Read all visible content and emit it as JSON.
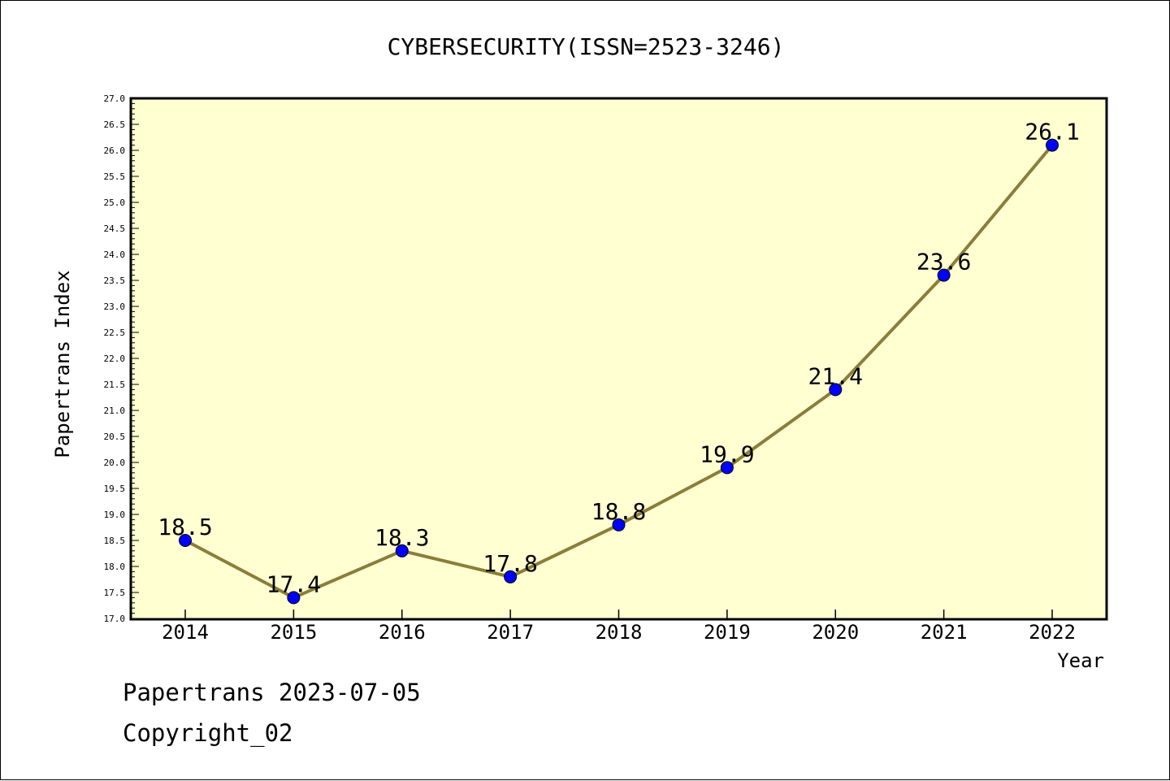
{
  "chart_data": {
    "type": "line",
    "title": "CYBERSECURITY(ISSN=2523-3246)",
    "xlabel": "Year",
    "ylabel": "Papertrans Index",
    "categories": [
      "2014",
      "2015",
      "2016",
      "2017",
      "2018",
      "2019",
      "2020",
      "2021",
      "2022"
    ],
    "series": [
      {
        "values": [
          18.5,
          17.4,
          18.3,
          17.8,
          18.8,
          19.9,
          21.4,
          23.6,
          26.1
        ],
        "data_labels": [
          "18.5",
          "17.4",
          "18.3",
          "17.8",
          "18.8",
          "19.9",
          "21.4",
          "23.6",
          "26.1"
        ]
      }
    ],
    "ylim": [
      17.0,
      27.0
    ],
    "yticks": [
      "17.0",
      "17.5",
      "18.0",
      "18.5",
      "19.0",
      "19.5",
      "20.0",
      "20.5",
      "21.0",
      "21.5",
      "22.0",
      "22.5",
      "23.0",
      "23.5",
      "24.0",
      "24.5",
      "25.0",
      "25.5",
      "26.0",
      "26.5",
      "27.0"
    ],
    "grid": false,
    "legend": "none",
    "colors": {
      "plot_background": "#ffffd2",
      "line": "#8b7d3a",
      "marker": "#0000ff",
      "axis": "#000000"
    }
  },
  "footer": {
    "line1": "Papertrans 2023-07-05",
    "line2": "Copyright_02"
  }
}
